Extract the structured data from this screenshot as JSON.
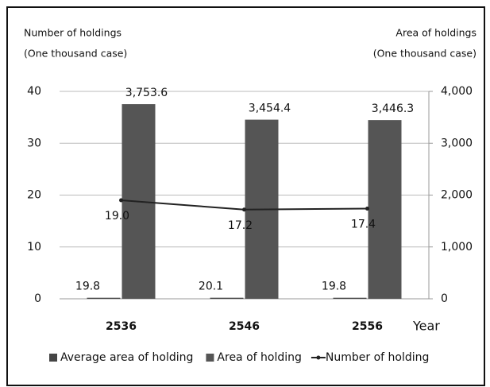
{
  "chart_data": {
    "type": "bar",
    "y_label": [
      "Number of holdings",
      "(One thousand case)"
    ],
    "y2_label": [
      "Area of holdings",
      "(One thousand case)"
    ],
    "x_label": "Year",
    "categories": [
      "2536",
      "2546",
      "2556"
    ],
    "ylim": [
      0,
      40
    ],
    "yticks": [
      0,
      10,
      20,
      30,
      40
    ],
    "y2lim": [
      0,
      4000
    ],
    "y2ticks": [
      0,
      {
        "value": 1000,
        "label": "1,000"
      },
      {
        "value": 2000,
        "label": "2,000"
      },
      {
        "value": 3000,
        "label": "3,000"
      },
      {
        "value": 4000,
        "label": "4,000"
      }
    ],
    "grid": true,
    "legend": "bottom",
    "series": [
      {
        "name": "Average area of holding",
        "type": "bar",
        "axis": "y2",
        "color": "#454545",
        "values": [
          19.8,
          20.1,
          19.8
        ]
      },
      {
        "name": "Area of holding",
        "type": "bar",
        "axis": "y2",
        "color": "#555555",
        "values": [
          3753.6,
          3454.4,
          3446.3
        ],
        "value_labels": [
          "3,753.6",
          "3,454.4",
          "3,446.3"
        ]
      },
      {
        "name": "Number of holding",
        "type": "line",
        "color": "#222222",
        "values": [
          19.0,
          17.2,
          17.4
        ],
        "value_labels": [
          "19.0",
          "17.2",
          "17.4"
        ]
      }
    ]
  }
}
